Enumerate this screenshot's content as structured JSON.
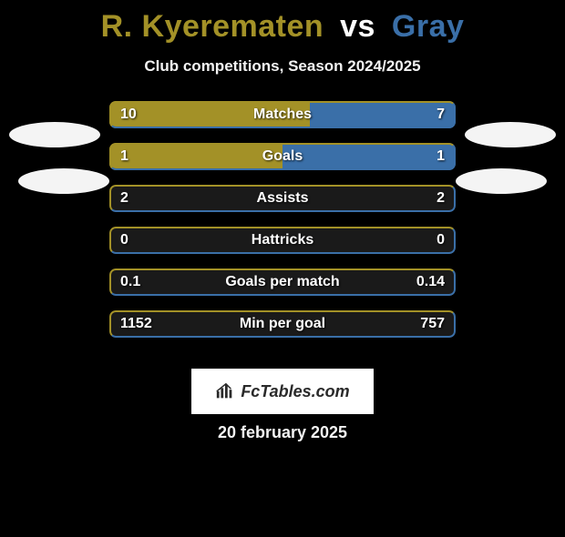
{
  "title": {
    "player1": "R. Kyerematen",
    "vs": "vs",
    "player2": "Gray",
    "player1_color": "#a39127",
    "vs_color": "#ffffff",
    "player2_color": "#3a6fa8"
  },
  "subtitle": "Club competitions, Season 2024/2025",
  "colors": {
    "left_fill": "#a39127",
    "right_fill": "#3a6fa8",
    "row_bg": "#1a1a1a",
    "border_left": "#a39127",
    "border_right": "#3a6fa8"
  },
  "rows": [
    {
      "label": "Matches",
      "left": "10",
      "right": "7",
      "left_pct": 58,
      "right_pct": 42
    },
    {
      "label": "Goals",
      "left": "1",
      "right": "1",
      "left_pct": 50,
      "right_pct": 50
    },
    {
      "label": "Assists",
      "left": "2",
      "right": "2",
      "left_pct": 0,
      "right_pct": 0
    },
    {
      "label": "Hattricks",
      "left": "0",
      "right": "0",
      "left_pct": 0,
      "right_pct": 0
    },
    {
      "label": "Goals per match",
      "left": "0.1",
      "right": "0.14",
      "left_pct": 0,
      "right_pct": 0
    },
    {
      "label": "Min per goal",
      "left": "1152",
      "right": "757",
      "left_pct": 0,
      "right_pct": 0
    }
  ],
  "logo_text": "FcTables.com",
  "date": "20 february 2025"
}
